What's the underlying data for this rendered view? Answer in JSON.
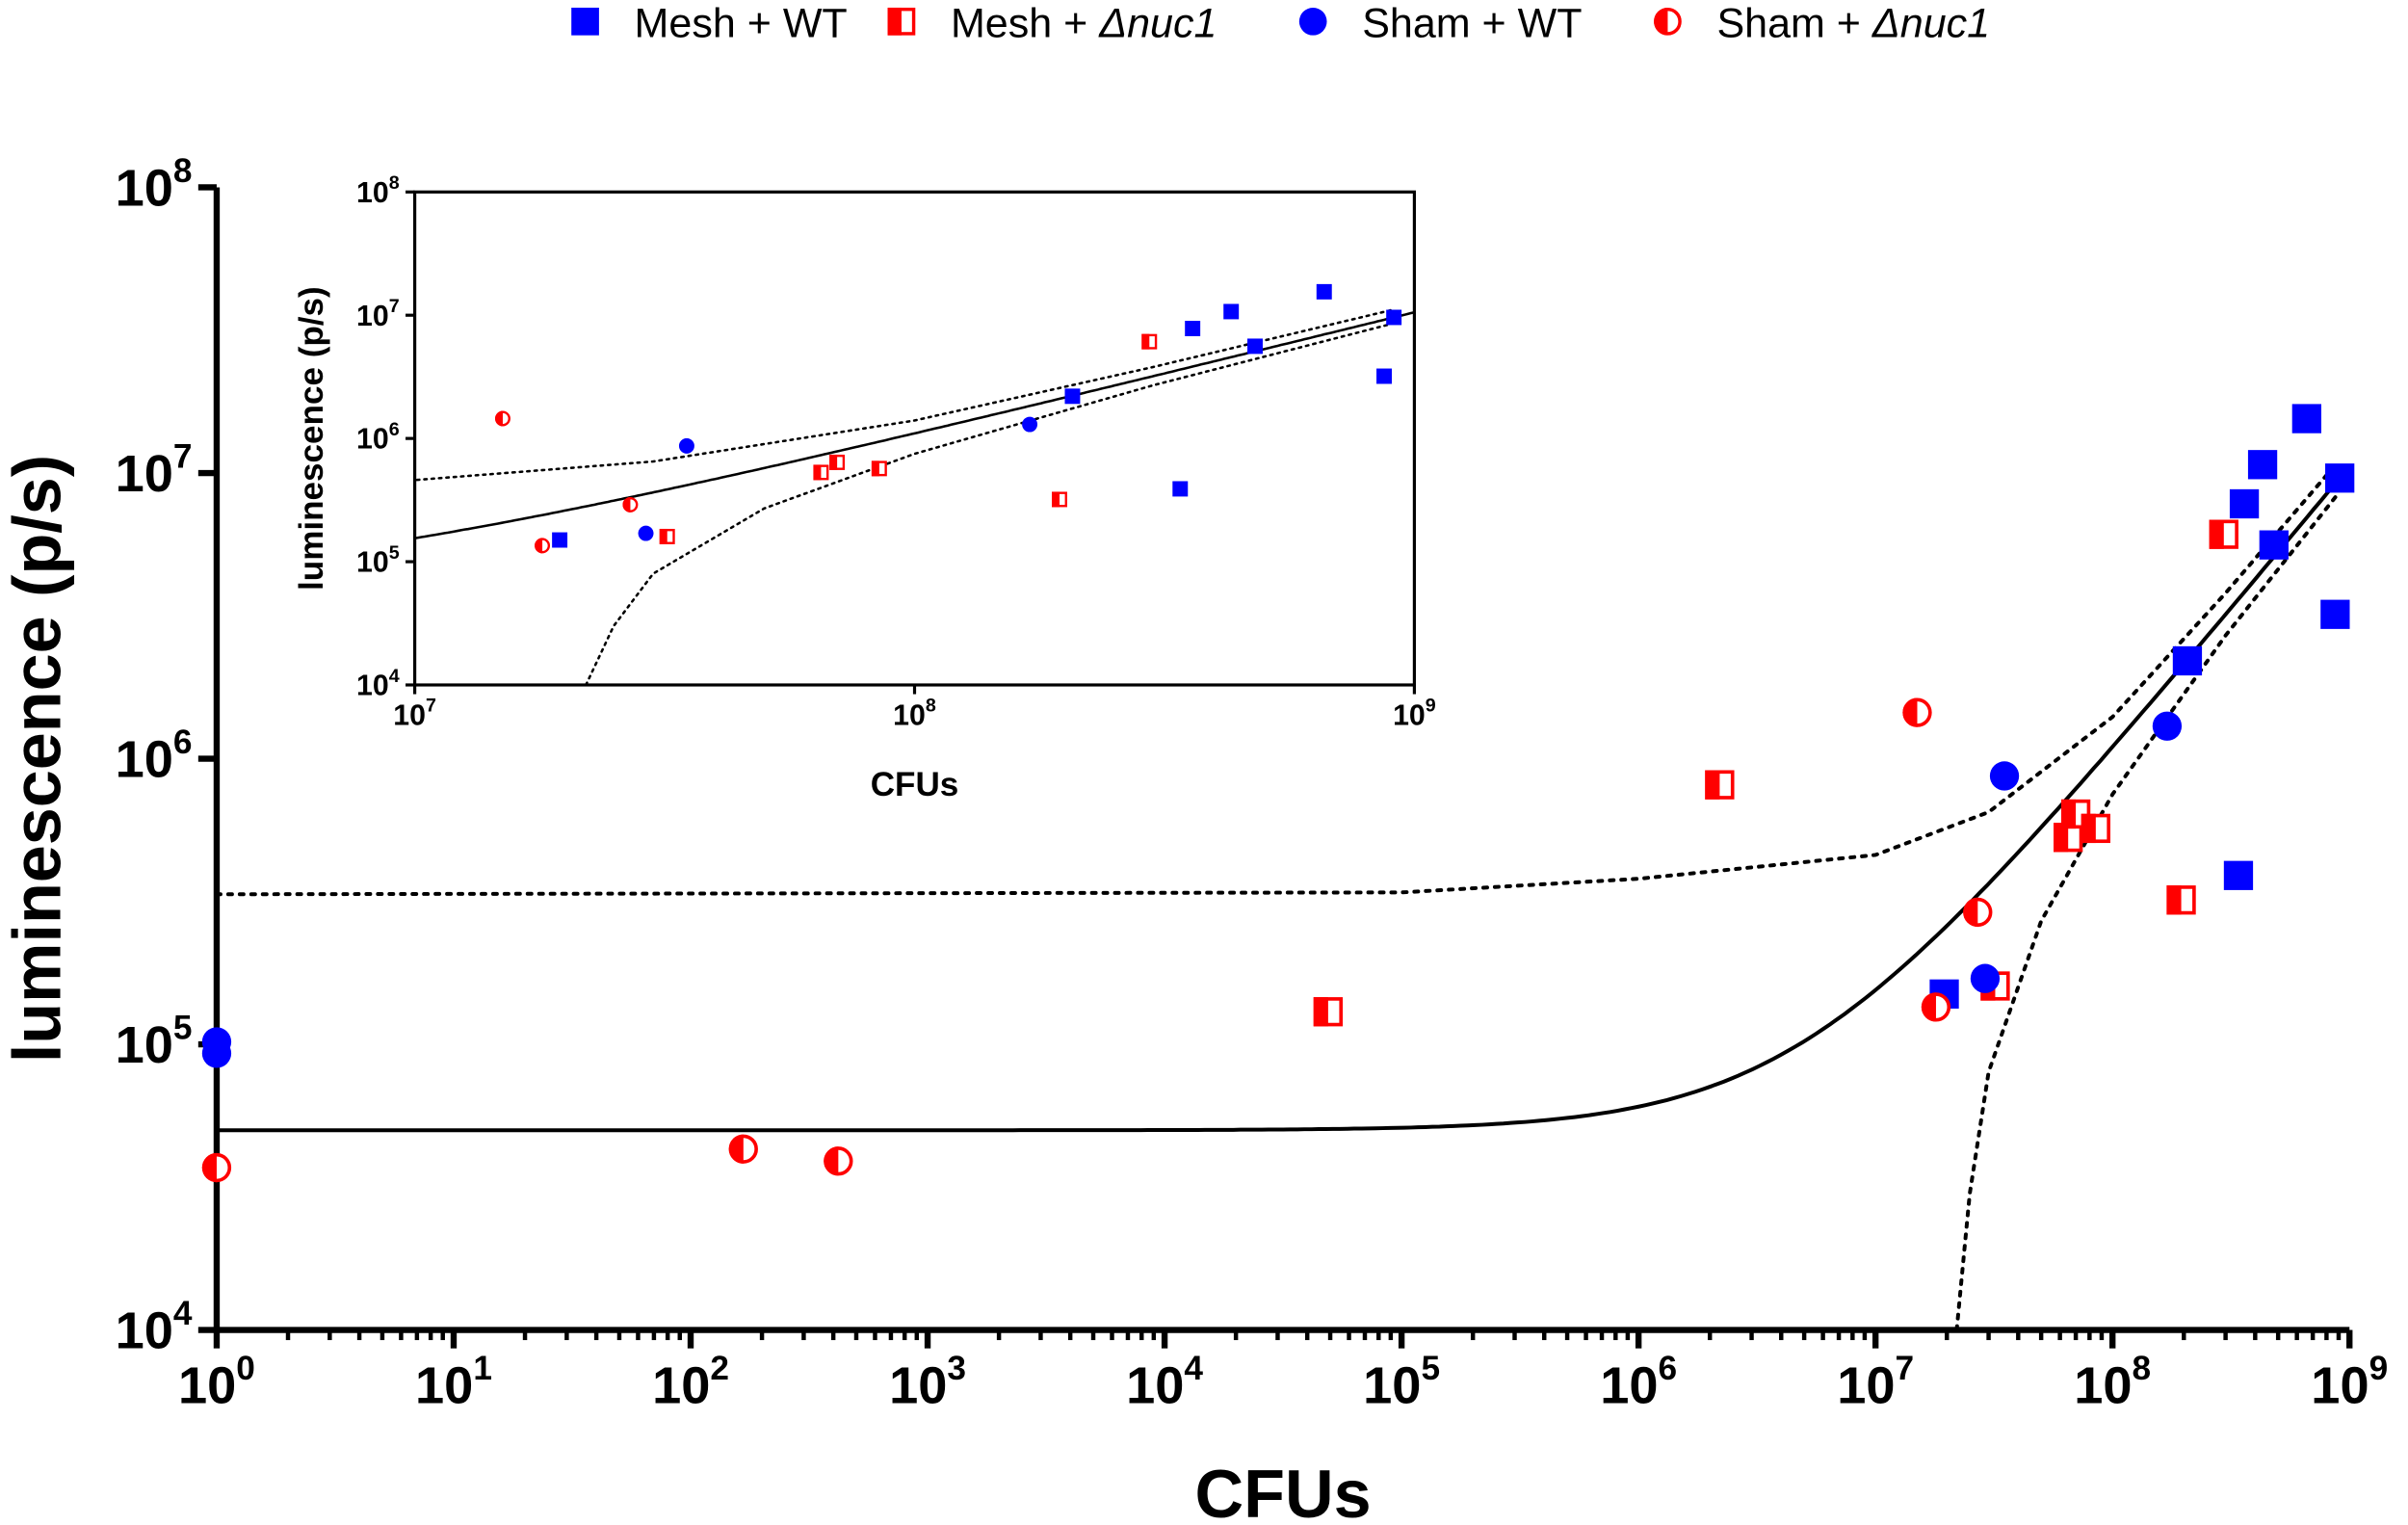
{
  "chart_data": {
    "type": "scatter",
    "xlabel": "CFUs",
    "ylabel": "luminescence (p/s)",
    "xscale": "log",
    "yscale": "log",
    "xlim": [
      1,
      1000000000
    ],
    "ylim": [
      10000,
      100000000
    ],
    "x_ticks": [
      {
        "base": "10",
        "exp": "0",
        "v": 1
      },
      {
        "base": "10",
        "exp": "1",
        "v": 10
      },
      {
        "base": "10",
        "exp": "2",
        "v": 100
      },
      {
        "base": "10",
        "exp": "3",
        "v": 1000
      },
      {
        "base": "10",
        "exp": "4",
        "v": 10000
      },
      {
        "base": "10",
        "exp": "5",
        "v": 100000
      },
      {
        "base": "10",
        "exp": "6",
        "v": 1000000
      },
      {
        "base": "10",
        "exp": "7",
        "v": 10000000
      },
      {
        "base": "10",
        "exp": "8",
        "v": 100000000
      },
      {
        "base": "10",
        "exp": "9",
        "v": 1000000000
      }
    ],
    "y_ticks": [
      {
        "base": "10",
        "exp": "4",
        "v": 10000
      },
      {
        "base": "10",
        "exp": "5",
        "v": 100000
      },
      {
        "base": "10",
        "exp": "6",
        "v": 1000000
      },
      {
        "base": "10",
        "exp": "7",
        "v": 10000000
      },
      {
        "base": "10",
        "exp": "8",
        "v": 100000000
      }
    ],
    "legend_position": "top",
    "colors": {
      "blue": "#0000ff",
      "red": "#ff0000"
    },
    "series": [
      {
        "name": "Mesh + WT",
        "name_main": "Mesh + WT",
        "name_italic": "",
        "marker": "square",
        "color": "#0000ff",
        "points": [
          [
            19500000,
            150000
          ],
          [
            340000000,
            390000
          ],
          [
            207000000,
            2200000
          ],
          [
            360000000,
            7800000
          ],
          [
            430000000,
            10700000
          ],
          [
            660000000,
            15500000
          ],
          [
            480000000,
            5600000
          ],
          [
            910000000,
            9600000
          ],
          [
            870000000,
            3200000
          ]
        ]
      },
      {
        "name": "Mesh + Δnuc1",
        "name_main": "Mesh + ",
        "name_italic": "Δnuc1",
        "marker": "half-square",
        "color": "#ff0000",
        "points": [
          [
            49000,
            130000
          ],
          [
            2200000,
            810000
          ],
          [
            32000000,
            160000
          ],
          [
            65000000,
            530000
          ],
          [
            70000000,
            640000
          ],
          [
            85000000,
            570000
          ],
          [
            195000000,
            320000
          ],
          [
            295000000,
            6100000
          ]
        ]
      },
      {
        "name": "Sham + WT",
        "name_main": "Sham + WT",
        "name_italic": "",
        "marker": "circle",
        "color": "#0000ff",
        "points": [
          [
            1,
            102000
          ],
          [
            1,
            93000
          ],
          [
            35000000,
            870000
          ],
          [
            29000000,
            170000
          ],
          [
            170000000,
            1300000
          ]
        ]
      },
      {
        "name": "Sham + Δnuc1",
        "name_main": "Sham + ",
        "name_italic": "Δnuc1",
        "marker": "half-circle",
        "color": "#ff0000",
        "points": [
          [
            1,
            37000
          ],
          [
            167,
            43000
          ],
          [
            420,
            39000
          ],
          [
            15000000,
            1450000
          ],
          [
            27000000,
            290000
          ],
          [
            18000000,
            135000
          ]
        ]
      }
    ],
    "fit": {
      "type": "linear",
      "intercept": 50000,
      "slope": 0.0105
    },
    "band_upper": [
      [
        1,
        335000
      ],
      [
        100000,
        340000
      ],
      [
        1000000,
        380000
      ],
      [
        10000000,
        460000
      ],
      [
        30000000,
        650000
      ],
      [
        100000000,
        1400000
      ],
      [
        300000000,
        3800000
      ],
      [
        900000000,
        11000000
      ]
    ],
    "band_lower": [
      [
        22000000,
        10000
      ],
      [
        25000000,
        30000
      ],
      [
        30000000,
        80000
      ],
      [
        50000000,
        270000
      ],
      [
        100000000,
        750000
      ],
      [
        300000000,
        2700000
      ],
      [
        900000000,
        8500000
      ]
    ],
    "inset": {
      "xlabel": "CFUs",
      "ylabel": "luminescence (p/s)",
      "xlim": [
        10000000,
        1000000000
      ],
      "ylim": [
        10000,
        100000000
      ],
      "x_ticks": [
        {
          "base": "10",
          "exp": "7",
          "v": 10000000
        },
        {
          "base": "10",
          "exp": "8",
          "v": 100000000
        },
        {
          "base": "10",
          "exp": "9",
          "v": 1000000000
        }
      ],
      "y_ticks": [
        {
          "base": "10",
          "exp": "4",
          "v": 10000
        },
        {
          "base": "10",
          "exp": "5",
          "v": 100000
        },
        {
          "base": "10",
          "exp": "6",
          "v": 1000000
        },
        {
          "base": "10",
          "exp": "7",
          "v": 10000000
        },
        {
          "base": "10",
          "exp": "8",
          "v": 100000000
        }
      ]
    }
  }
}
